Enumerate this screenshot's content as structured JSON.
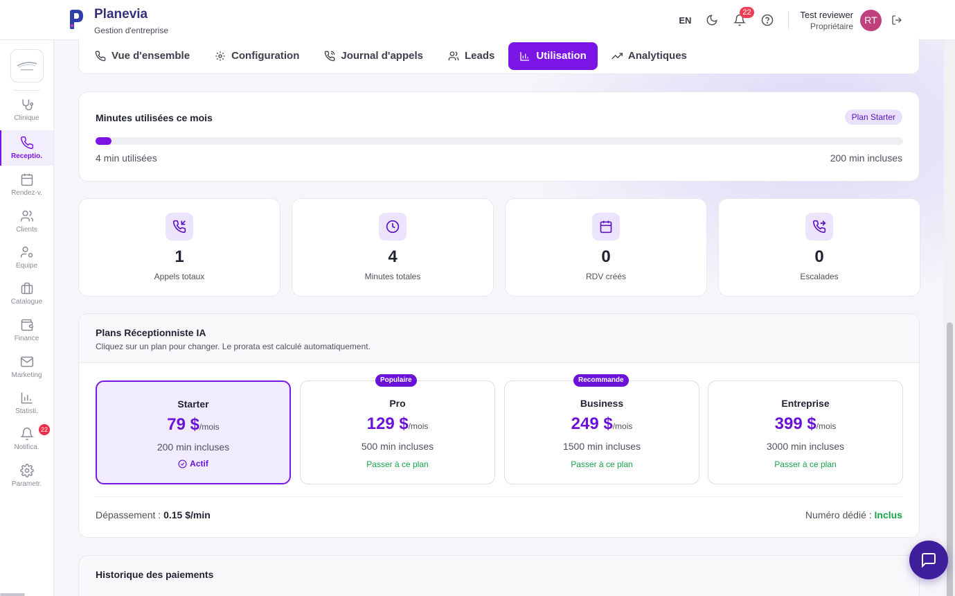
{
  "header": {
    "app_name": "Planevia",
    "app_subtitle": "Gestion d'entreprise",
    "lang": "EN",
    "notif_count": "22",
    "user_name": "Test reviewer",
    "user_role": "Propriétaire",
    "avatar_initials": "RT"
  },
  "sidebar": {
    "items": [
      {
        "label": "Clinique",
        "icon": "stethoscope-icon"
      },
      {
        "label": "Receptio.",
        "icon": "phone-icon",
        "active": true
      },
      {
        "label": "Rendez-v.",
        "icon": "calendar-icon"
      },
      {
        "label": "Clients",
        "icon": "users-icon"
      },
      {
        "label": "Equipe",
        "icon": "user-cog-icon"
      },
      {
        "label": "Catalogue",
        "icon": "briefcase-icon"
      },
      {
        "label": "Finance",
        "icon": "wallet-icon"
      },
      {
        "label": "Marketing",
        "icon": "mail-icon"
      },
      {
        "label": "Statisti.",
        "icon": "bar-chart-icon"
      },
      {
        "label": "Notifica.",
        "icon": "bell-icon",
        "badge": "22"
      },
      {
        "label": "Parametr.",
        "icon": "gear-icon"
      }
    ]
  },
  "tabs": [
    {
      "label": "Vue d'ensemble",
      "icon": "phone-icon"
    },
    {
      "label": "Configuration",
      "icon": "gear-icon"
    },
    {
      "label": "Journal d'appels",
      "icon": "phone-call-icon"
    },
    {
      "label": "Leads",
      "icon": "users-icon"
    },
    {
      "label": "Utilisation",
      "icon": "bar-chart-icon",
      "active": true
    },
    {
      "label": "Analytiques",
      "icon": "trending-up-icon"
    }
  ],
  "usage": {
    "title": "Minutes utilisées ce mois",
    "plan_badge": "Plan Starter",
    "used_label": "4 min utilisées",
    "included_label": "200 min incluses",
    "used_fraction": 0.02
  },
  "stats": [
    {
      "value": "1",
      "label": "Appels totaux",
      "icon": "phone-incoming-icon"
    },
    {
      "value": "4",
      "label": "Minutes totales",
      "icon": "clock-icon"
    },
    {
      "value": "0",
      "label": "RDV créés",
      "icon": "calendar-icon"
    },
    {
      "value": "0",
      "label": "Escalades",
      "icon": "phone-forwarded-icon"
    }
  ],
  "plans_section": {
    "title": "Plans Réceptionniste IA",
    "subtitle": "Cliquez sur un plan pour changer. Le prorata est calculé automatiquement.",
    "plans": [
      {
        "name": "Starter",
        "price": "79 $",
        "period": "/mois",
        "minutes": "200 min incluses",
        "status": "Actif",
        "current": true
      },
      {
        "name": "Pro",
        "price": "129 $",
        "period": "/mois",
        "minutes": "500 min incluses",
        "action": "Passer à ce plan",
        "ribbon": "Populaire"
      },
      {
        "name": "Business",
        "price": "249 $",
        "period": "/mois",
        "minutes": "1500 min incluses",
        "action": "Passer à ce plan",
        "ribbon": "Recommande"
      },
      {
        "name": "Entreprise",
        "price": "399 $",
        "period": "/mois",
        "minutes": "3000 min incluses",
        "action": "Passer à ce plan"
      }
    ],
    "overage_label": "Dépassement : ",
    "overage_value": "0.15 $/min",
    "dedicated_label": "Numéro dédié : ",
    "dedicated_value": "Inclus"
  },
  "history": {
    "title": "Historique des paiements"
  },
  "colors": {
    "accent": "#7a15e6",
    "success": "#16a34a",
    "badge": "#ef3d58"
  }
}
